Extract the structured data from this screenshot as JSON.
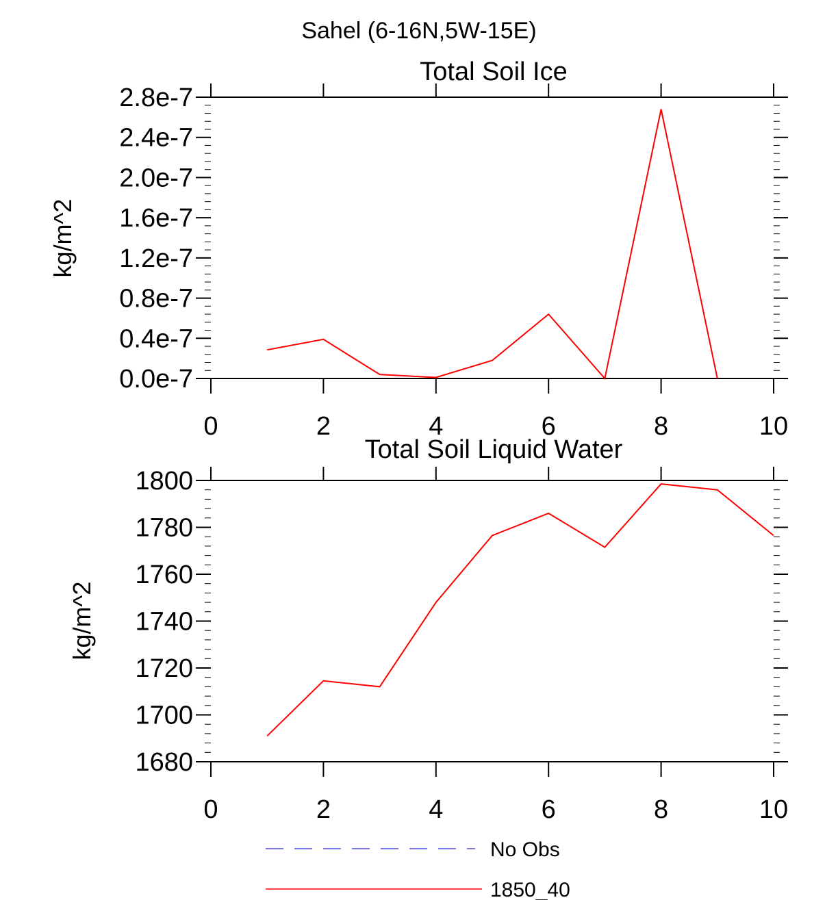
{
  "main_title": "Sahel (6-16N,5W-15E)",
  "chart_data": [
    {
      "type": "line",
      "title": "Total Soil Ice",
      "xlabel": "",
      "ylabel": "kg/m^2",
      "xlim": [
        0,
        10
      ],
      "ylim": [
        0,
        2.8e-07
      ],
      "x_ticks": [
        0,
        2,
        4,
        6,
        8,
        10
      ],
      "x_tick_labels": [
        "0",
        "2",
        "4",
        "6",
        "8",
        "10"
      ],
      "y_ticks": [
        0,
        4e-08,
        8e-08,
        1.2e-07,
        1.6e-07,
        2e-07,
        2.4e-07,
        2.8e-07
      ],
      "y_tick_labels": [
        "0.0e-7",
        "0.4e-7",
        "0.8e-7",
        "1.2e-7",
        "1.6e-7",
        "2.0e-7",
        "2.4e-7",
        "2.8e-7"
      ],
      "grid": false,
      "series": [
        {
          "name": "1850_40",
          "color": "#ff0000",
          "x": [
            1,
            2,
            3,
            4,
            5,
            6,
            7,
            8,
            9
          ],
          "values": [
            2.85e-08,
            3.9e-08,
            4e-09,
            1e-09,
            1.8e-08,
            6.4e-08,
            0,
            2.68e-07,
            0
          ]
        }
      ]
    },
    {
      "type": "line",
      "title": "Total Soil Liquid Water",
      "xlabel": "",
      "ylabel": "kg/m^2",
      "xlim": [
        0,
        10
      ],
      "ylim": [
        1680,
        1800
      ],
      "x_ticks": [
        0,
        2,
        4,
        6,
        8,
        10
      ],
      "x_tick_labels": [
        "0",
        "2",
        "4",
        "6",
        "8",
        "10"
      ],
      "y_ticks": [
        1680,
        1700,
        1720,
        1740,
        1760,
        1780,
        1800
      ],
      "y_tick_labels": [
        "1680",
        "1700",
        "1720",
        "1740",
        "1760",
        "1780",
        "1800"
      ],
      "grid": false,
      "series": [
        {
          "name": "1850_40",
          "color": "#ff0000",
          "x": [
            1,
            2,
            3,
            4,
            5,
            6,
            7,
            8,
            9,
            10
          ],
          "values": [
            1691,
            1714.5,
            1712,
            1748,
            1776.5,
            1786,
            1771.5,
            1798.5,
            1796,
            1776.5
          ]
        }
      ]
    }
  ],
  "legend": {
    "placement": "bottom",
    "items": [
      {
        "label": "No Obs",
        "color": "#4a4ae6",
        "style": "dashed"
      },
      {
        "label": "1850_40",
        "color": "#ff0000",
        "style": "solid"
      }
    ]
  }
}
